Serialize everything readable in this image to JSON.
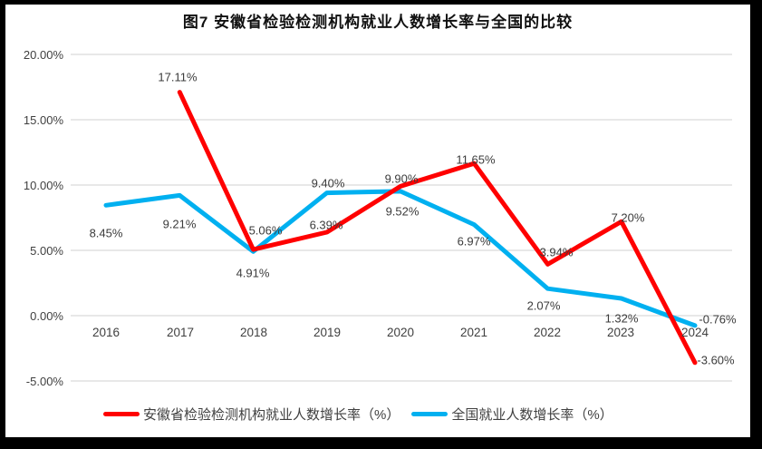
{
  "title": "图7 安徽省检验检测机构就业人数增长率与全国的比较",
  "chart_data": {
    "type": "line",
    "categories": [
      "2016",
      "2017",
      "2018",
      "2019",
      "2020",
      "2021",
      "2022",
      "2023",
      "2024"
    ],
    "y_ticks": [
      "20.00%",
      "15.00%",
      "10.00%",
      "5.00%",
      "0.00%",
      "-5.00%"
    ],
    "ylim": [
      -5,
      20
    ],
    "xlabel": "",
    "ylabel": "",
    "grid": true,
    "legend_position": "bottom",
    "series": [
      {
        "name": "安徽省检验检测机构就业人数增长率（%）",
        "color": "#FF0000",
        "values": [
          null,
          17.11,
          5.06,
          6.39,
          9.9,
          11.65,
          3.94,
          7.2,
          -3.6
        ],
        "labels": [
          null,
          "17.11%",
          "5.06%",
          "6.39%",
          "9.90%",
          "11.65%",
          "3.94%",
          "7.20%",
          "-3.60%"
        ]
      },
      {
        "name": "全国就业人数增长率（%）",
        "color": "#00B0F0",
        "values": [
          8.45,
          9.21,
          4.91,
          9.4,
          9.52,
          6.97,
          2.07,
          1.32,
          -0.76
        ],
        "labels": [
          "8.45%",
          "9.21%",
          "4.91%",
          "9.40%",
          "9.52%",
          "6.97%",
          "2.07%",
          "1.32%",
          "-0.76%"
        ]
      }
    ]
  },
  "colors": {
    "anhui_line": "#FF0000",
    "national_line": "#00B0F0",
    "gridline": "#D9D9D9",
    "tick_text": "#404040",
    "frame": "#000000",
    "background": "#FFFFFF"
  }
}
